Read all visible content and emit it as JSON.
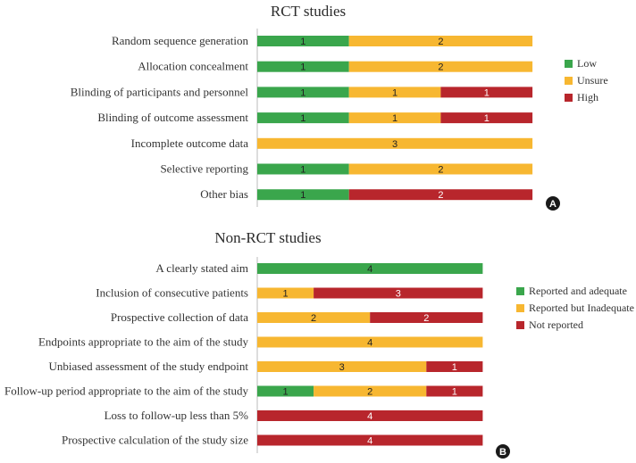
{
  "chart_data": [
    {
      "type": "bar",
      "orientation": "horizontal",
      "stacked": true,
      "title": "RCT studies",
      "panel_label": "A",
      "total": 3,
      "categories": [
        "Random sequence generation",
        "Allocation concealment",
        "Blinding of participants and personnel",
        "Blinding of outcome assessment",
        "Incomplete outcome data",
        "Selective reporting",
        "Other bias"
      ],
      "series": [
        {
          "name": "Low",
          "color": "#3aa64c",
          "values": [
            1,
            1,
            1,
            1,
            0,
            1,
            1
          ]
        },
        {
          "name": "Unsure",
          "color": "#f7b731",
          "values": [
            2,
            2,
            1,
            1,
            3,
            2,
            0
          ]
        },
        {
          "name": "High",
          "color": "#b8262c",
          "values": [
            0,
            0,
            1,
            1,
            0,
            0,
            2
          ]
        }
      ],
      "legend_position": "right"
    },
    {
      "type": "bar",
      "orientation": "horizontal",
      "stacked": true,
      "title": "Non-RCT studies",
      "panel_label": "B",
      "total": 4,
      "categories": [
        "A clearly stated aim",
        "Inclusion of consecutive patients",
        "Prospective collection of data",
        "Endpoints appropriate to the aim of the study",
        "Unbiased assessment of the study endpoint",
        "Follow-up period appropriate to the aim of the study",
        "Loss to follow-up less than 5%",
        "Prospective calculation of the study size"
      ],
      "series": [
        {
          "name": "Reported and adequate",
          "color": "#3aa64c",
          "values": [
            4,
            0,
            0,
            0,
            0,
            1,
            0,
            0
          ]
        },
        {
          "name": "Reported but Inadequate",
          "color": "#f7b731",
          "values": [
            0,
            1,
            2,
            4,
            3,
            2,
            0,
            0
          ]
        },
        {
          "name": "Not reported",
          "color": "#b8262c",
          "values": [
            0,
            3,
            2,
            0,
            1,
            1,
            4,
            4
          ]
        }
      ],
      "legend_position": "right"
    }
  ]
}
